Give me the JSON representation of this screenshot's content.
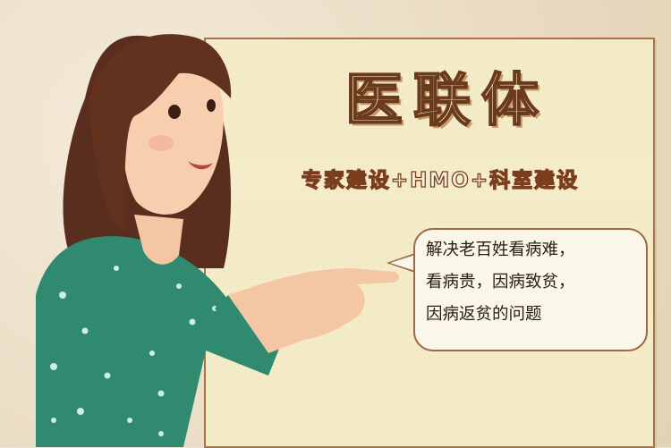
{
  "title": "医联体",
  "subtitle": "专家建设+HMO+科室建设",
  "speech_bubble": {
    "lines": [
      "解决老百姓看病难，",
      "看病贵，因病致贫，",
      "因病返贫的问题"
    ]
  },
  "colors": {
    "board": "#f4ecc8",
    "title_stroke": "#6a3a1d",
    "dress": "#2f8a70",
    "hair": "#5a2e1e"
  }
}
